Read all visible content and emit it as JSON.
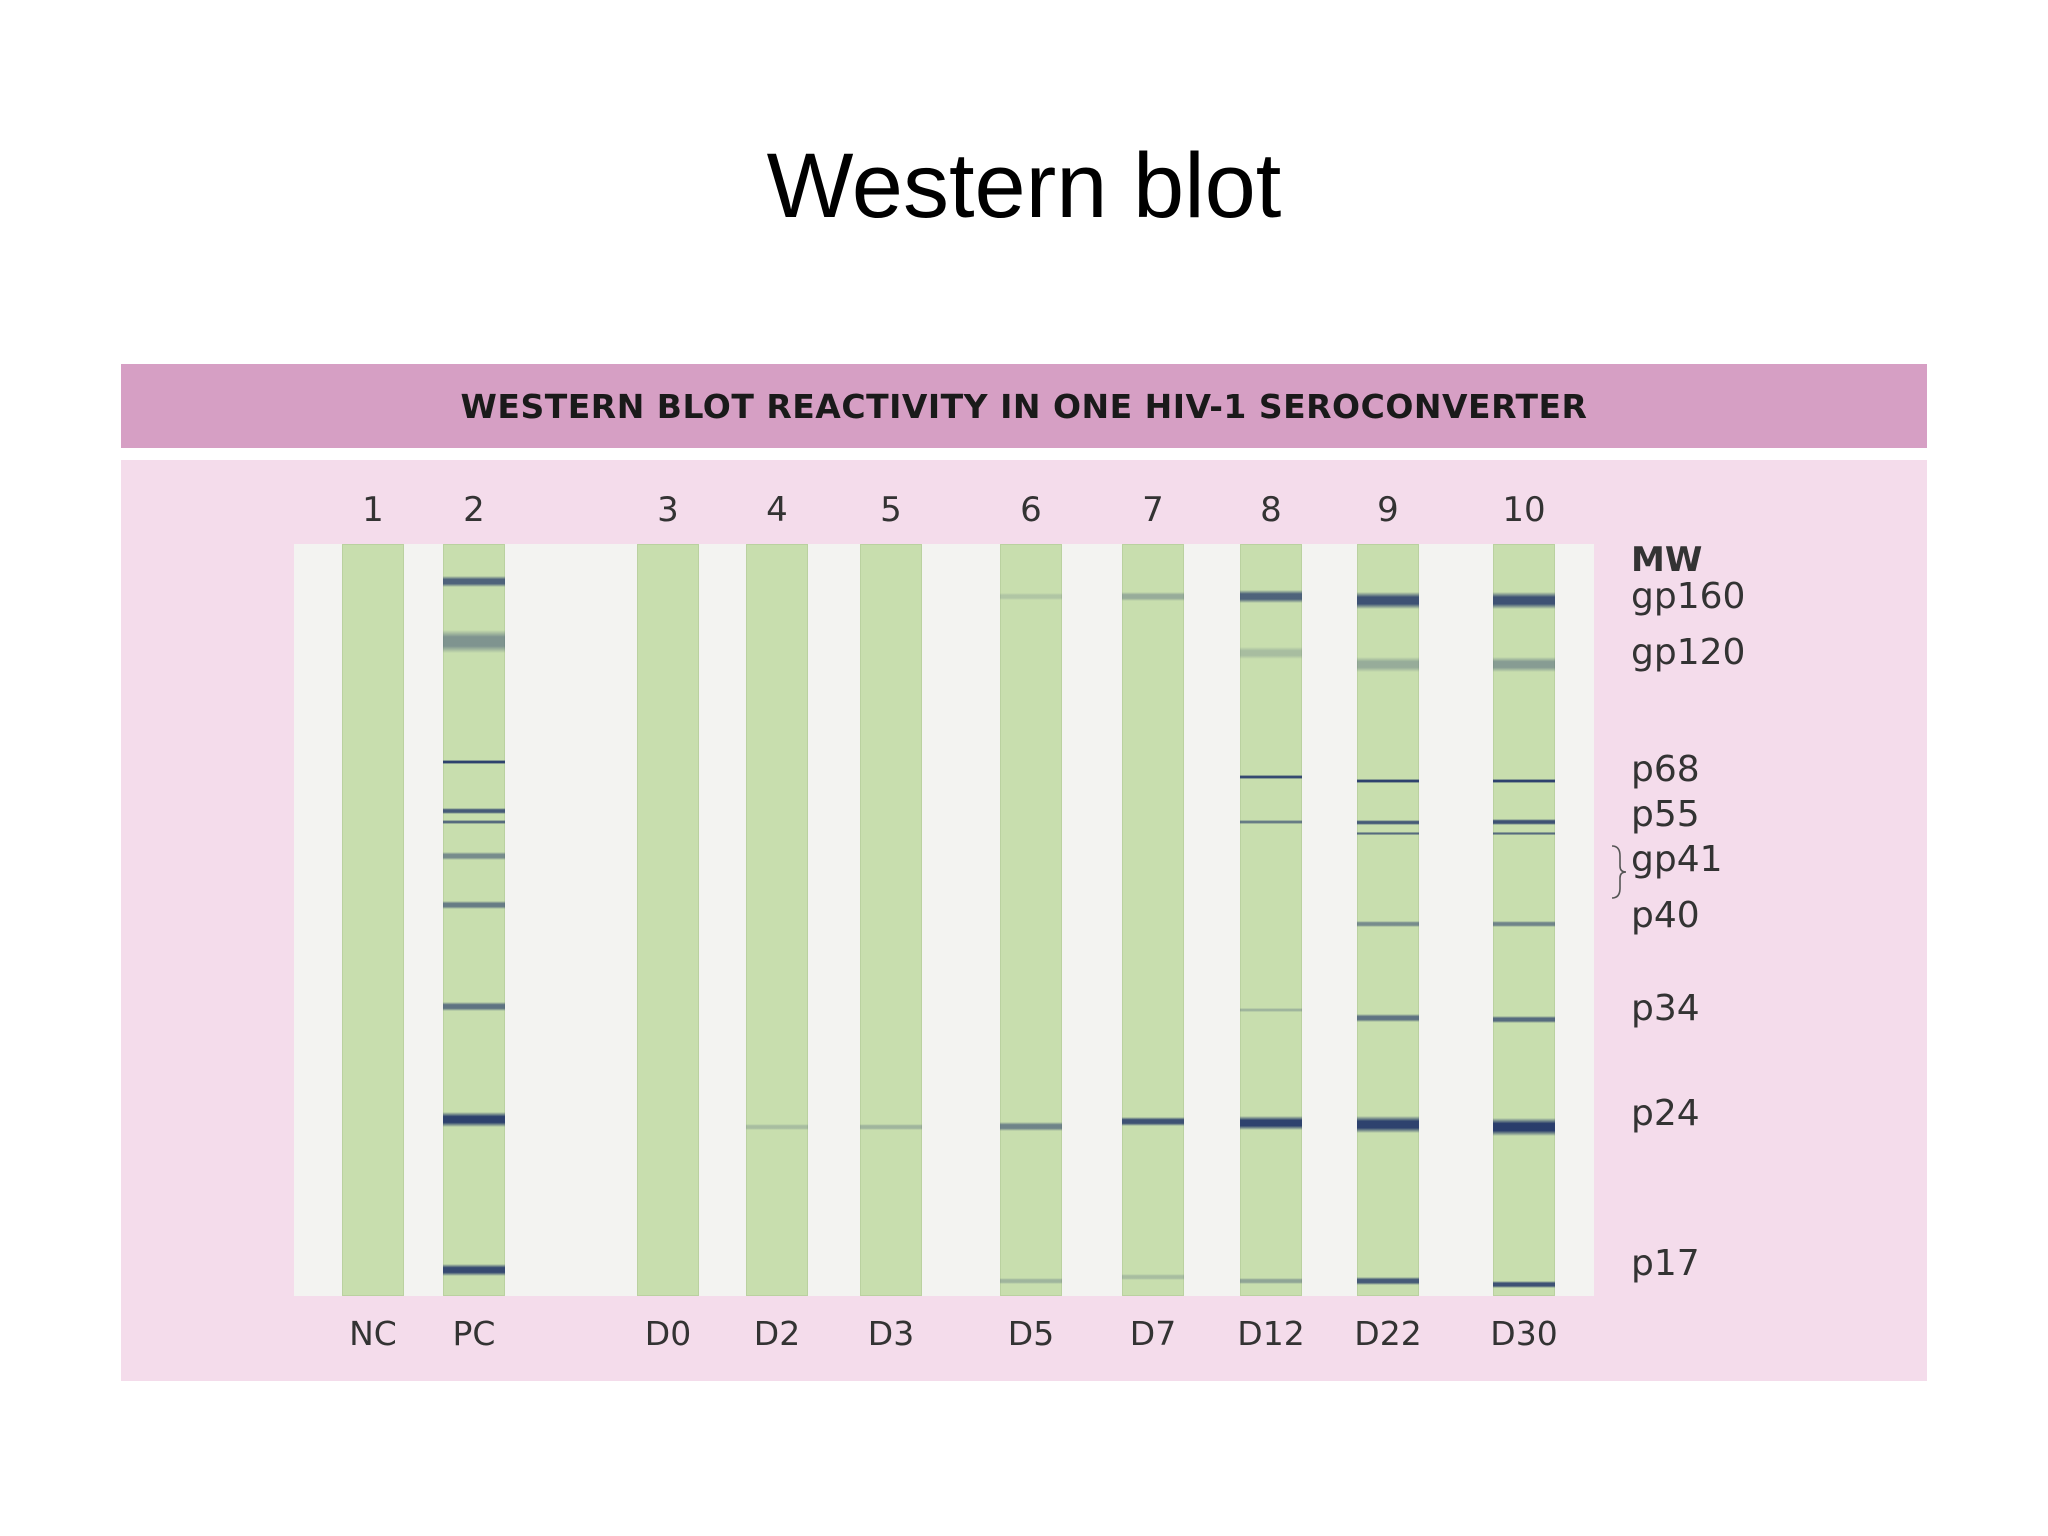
{
  "slide_title": "Western blot",
  "figure": {
    "header": "WESTERN BLOT REACTIVITY IN ONE HIV-1 SEROCONVERTER",
    "mw_heading": "MW",
    "colors": {
      "header_bg": "#d69fc4",
      "panel_bg": "#f4dceb",
      "strip": "#c8deae",
      "band": "#263a6a"
    },
    "markers": [
      {
        "name": "gp160",
        "pos": 0.07
      },
      {
        "name": "gp120",
        "pos": 0.145
      },
      {
        "name": "p68",
        "pos": 0.3
      },
      {
        "name": "p55",
        "pos": 0.36
      },
      {
        "name": "gp41",
        "pos": 0.42
      },
      {
        "name": "p40",
        "pos": 0.495
      },
      {
        "name": "p34",
        "pos": 0.618
      },
      {
        "name": "p24",
        "pos": 0.758
      },
      {
        "name": "p17",
        "pos": 0.958
      }
    ],
    "lanes": [
      {
        "number": "1",
        "label": "NC",
        "bands": []
      },
      {
        "number": "2",
        "label": "PC",
        "bands": [
          {
            "pos": 0.05,
            "intensity": 0.75,
            "thick": 0.014
          },
          {
            "pos": 0.13,
            "intensity": 0.45,
            "thick": 0.03
          },
          {
            "pos": 0.29,
            "intensity": 0.95,
            "thick": 0.006
          },
          {
            "pos": 0.355,
            "intensity": 0.8,
            "thick": 0.007
          },
          {
            "pos": 0.37,
            "intensity": 0.7,
            "thick": 0.005
          },
          {
            "pos": 0.415,
            "intensity": 0.5,
            "thick": 0.01
          },
          {
            "pos": 0.48,
            "intensity": 0.6,
            "thick": 0.01
          },
          {
            "pos": 0.615,
            "intensity": 0.65,
            "thick": 0.012
          },
          {
            "pos": 0.765,
            "intensity": 0.95,
            "thick": 0.02
          },
          {
            "pos": 0.965,
            "intensity": 0.9,
            "thick": 0.016
          }
        ]
      },
      {
        "number": "3",
        "label": "D0",
        "bands": []
      },
      {
        "number": "4",
        "label": "D2",
        "bands": [
          {
            "pos": 0.775,
            "intensity": 0.2,
            "thick": 0.008
          }
        ]
      },
      {
        "number": "5",
        "label": "D3",
        "bands": [
          {
            "pos": 0.775,
            "intensity": 0.25,
            "thick": 0.008
          }
        ]
      },
      {
        "number": "6",
        "label": "D5",
        "bands": [
          {
            "pos": 0.07,
            "intensity": 0.15,
            "thick": 0.01
          },
          {
            "pos": 0.775,
            "intensity": 0.55,
            "thick": 0.012
          },
          {
            "pos": 0.98,
            "intensity": 0.25,
            "thick": 0.008
          }
        ]
      },
      {
        "number": "7",
        "label": "D7",
        "bands": [
          {
            "pos": 0.07,
            "intensity": 0.3,
            "thick": 0.012
          },
          {
            "pos": 0.768,
            "intensity": 0.85,
            "thick": 0.012
          },
          {
            "pos": 0.975,
            "intensity": 0.2,
            "thick": 0.008
          }
        ]
      },
      {
        "number": "8",
        "label": "D12",
        "bands": [
          {
            "pos": 0.07,
            "intensity": 0.75,
            "thick": 0.018
          },
          {
            "pos": 0.145,
            "intensity": 0.2,
            "thick": 0.015
          },
          {
            "pos": 0.31,
            "intensity": 0.9,
            "thick": 0.005
          },
          {
            "pos": 0.37,
            "intensity": 0.6,
            "thick": 0.006
          },
          {
            "pos": 0.62,
            "intensity": 0.25,
            "thick": 0.006
          },
          {
            "pos": 0.77,
            "intensity": 0.95,
            "thick": 0.018
          },
          {
            "pos": 0.98,
            "intensity": 0.35,
            "thick": 0.008
          }
        ]
      },
      {
        "number": "9",
        "label": "D22",
        "bands": [
          {
            "pos": 0.075,
            "intensity": 0.85,
            "thick": 0.022
          },
          {
            "pos": 0.16,
            "intensity": 0.3,
            "thick": 0.02
          },
          {
            "pos": 0.315,
            "intensity": 0.95,
            "thick": 0.006
          },
          {
            "pos": 0.37,
            "intensity": 0.8,
            "thick": 0.007
          },
          {
            "pos": 0.385,
            "intensity": 0.7,
            "thick": 0.005
          },
          {
            "pos": 0.505,
            "intensity": 0.5,
            "thick": 0.008
          },
          {
            "pos": 0.63,
            "intensity": 0.65,
            "thick": 0.01
          },
          {
            "pos": 0.772,
            "intensity": 0.95,
            "thick": 0.022
          },
          {
            "pos": 0.98,
            "intensity": 0.8,
            "thick": 0.01
          }
        ]
      },
      {
        "number": "10",
        "label": "D30",
        "bands": [
          {
            "pos": 0.075,
            "intensity": 0.85,
            "thick": 0.022
          },
          {
            "pos": 0.16,
            "intensity": 0.4,
            "thick": 0.02
          },
          {
            "pos": 0.315,
            "intensity": 0.95,
            "thick": 0.006
          },
          {
            "pos": 0.37,
            "intensity": 0.85,
            "thick": 0.008
          },
          {
            "pos": 0.385,
            "intensity": 0.7,
            "thick": 0.005
          },
          {
            "pos": 0.505,
            "intensity": 0.55,
            "thick": 0.008
          },
          {
            "pos": 0.632,
            "intensity": 0.7,
            "thick": 0.01
          },
          {
            "pos": 0.775,
            "intensity": 0.98,
            "thick": 0.024
          },
          {
            "pos": 0.985,
            "intensity": 0.85,
            "thick": 0.01
          }
        ]
      }
    ]
  }
}
